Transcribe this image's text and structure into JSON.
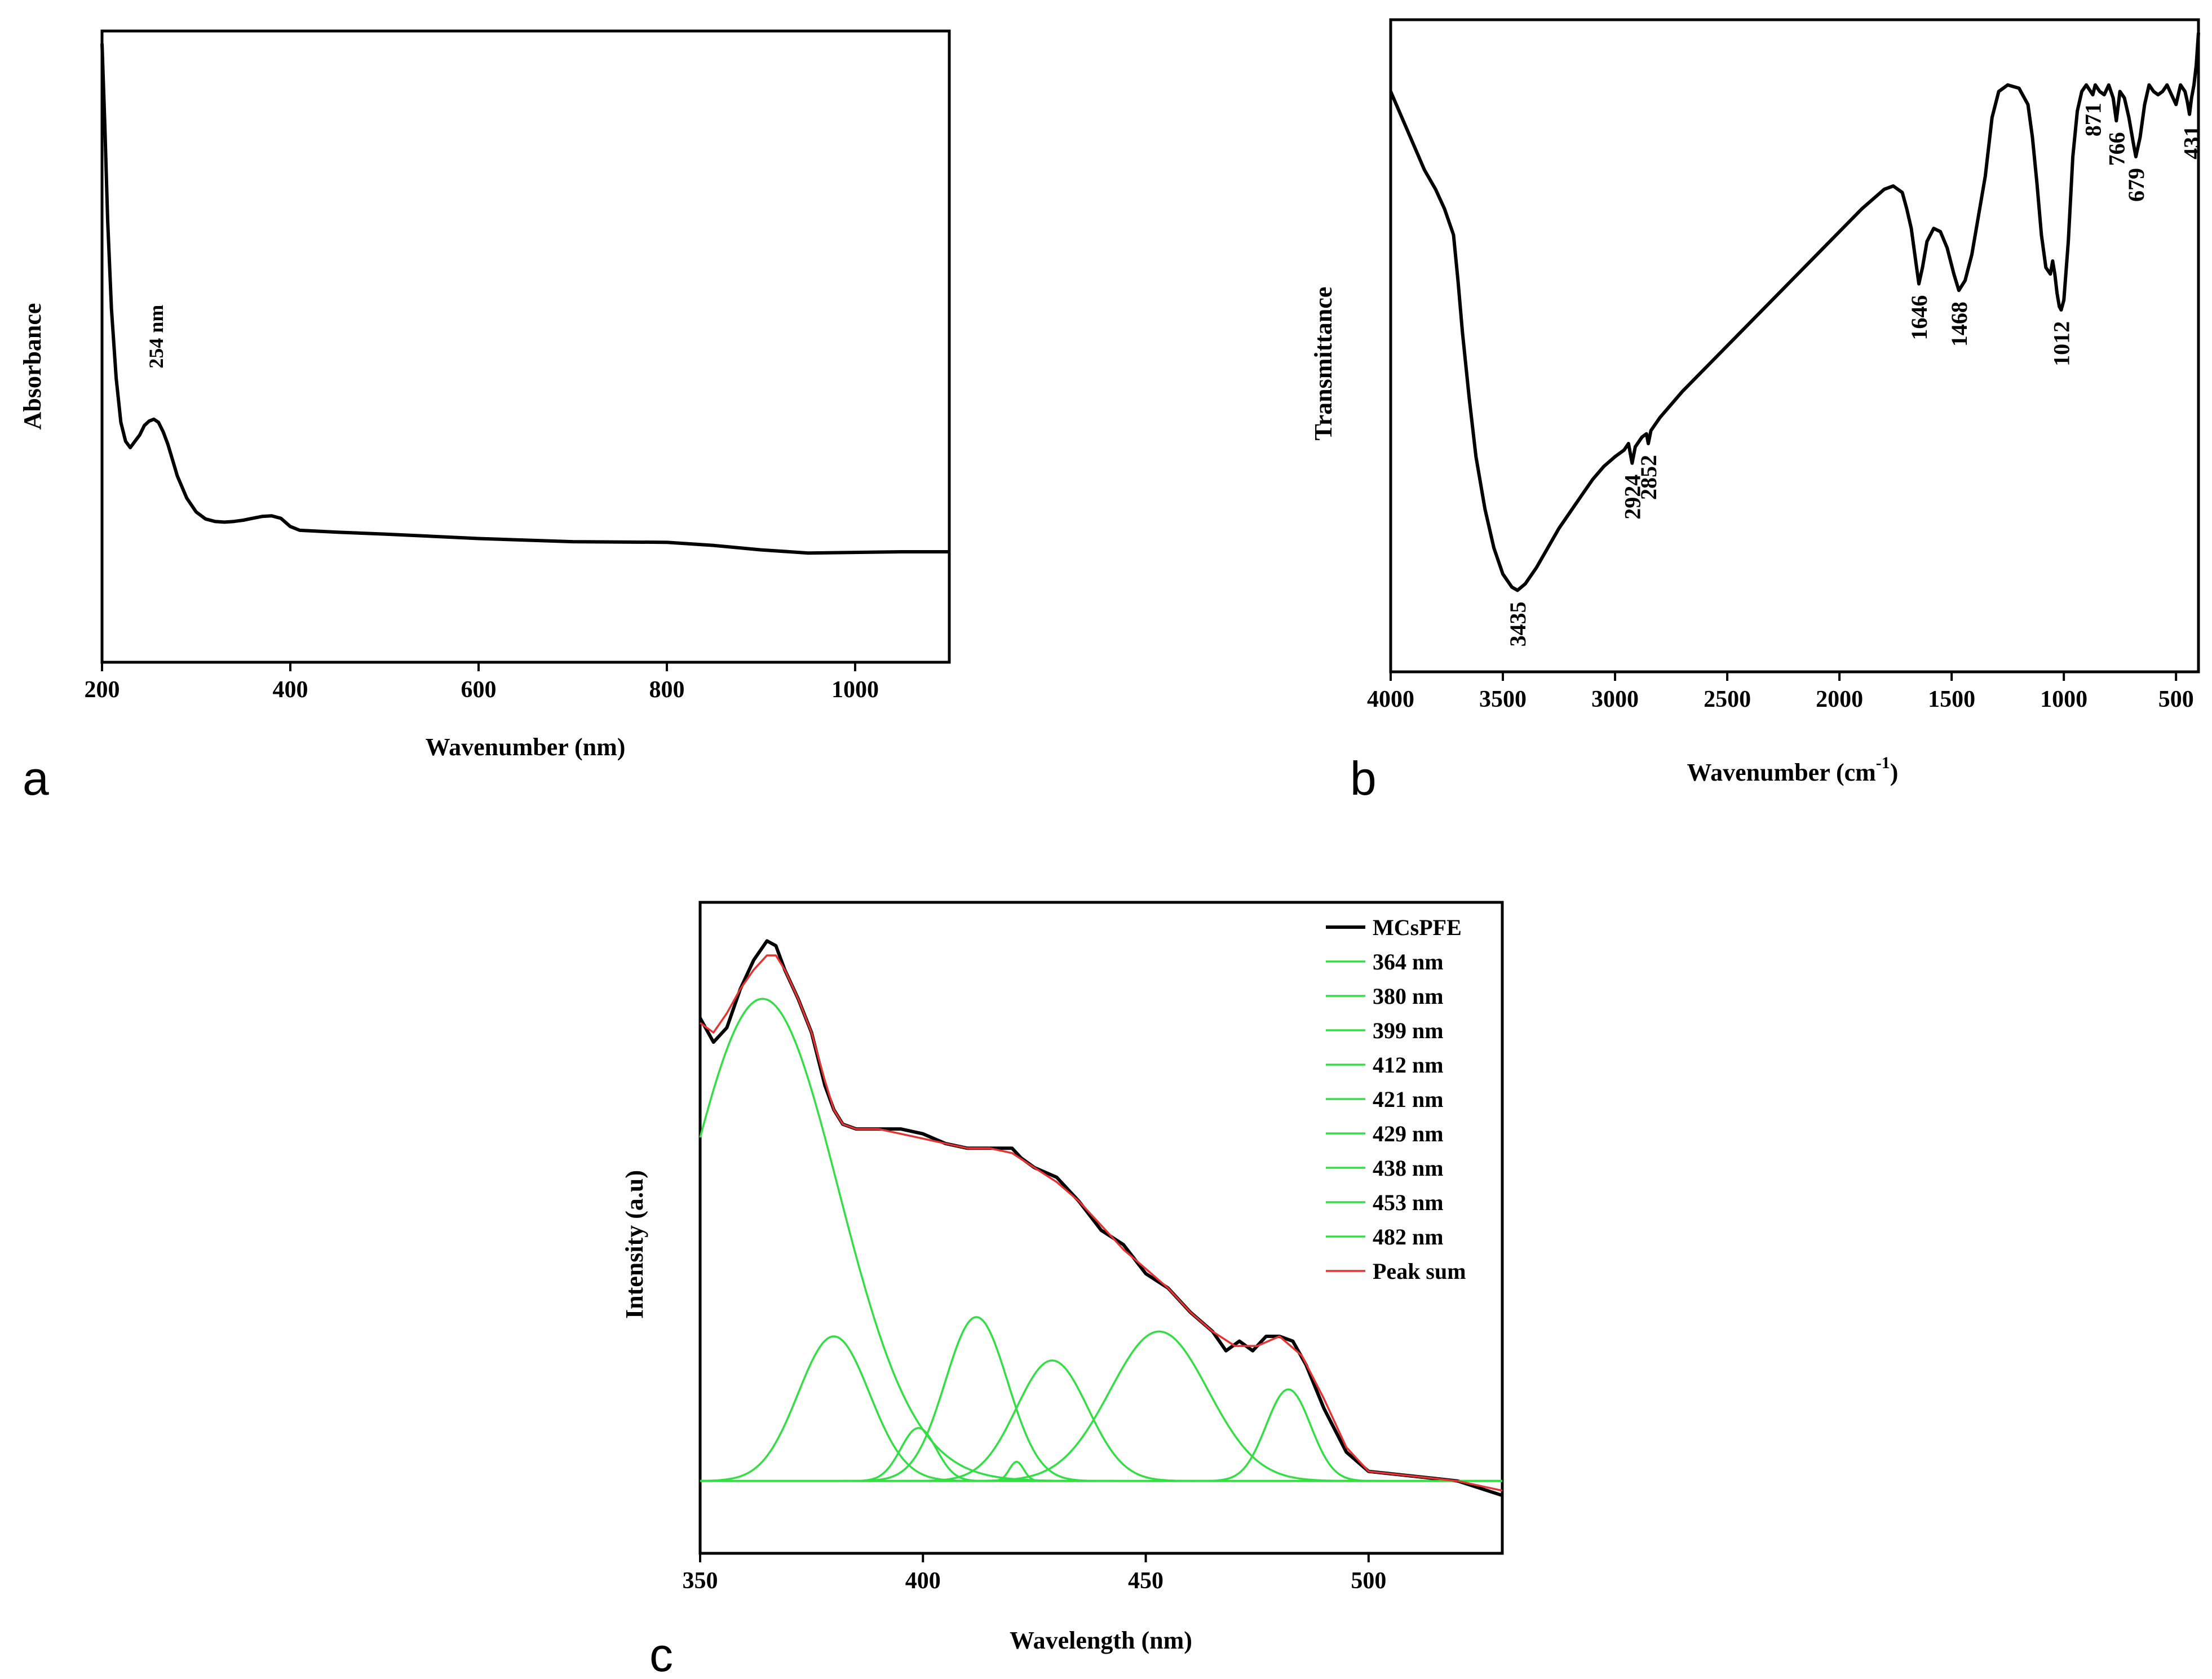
{
  "chart_data": [
    {
      "id": "a",
      "type": "line",
      "panel_label": "a",
      "xlabel": "Wavenumber (nm)",
      "ylabel": "Absorbance",
      "xlim": [
        200,
        1100
      ],
      "ylim": [
        0,
        100
      ],
      "xticks": [
        200,
        400,
        600,
        800,
        1000
      ],
      "series": [
        {
          "name": "Absorbance",
          "color": "#000000",
          "x": [
            200,
            203,
            206,
            210,
            215,
            220,
            225,
            230,
            235,
            240,
            245,
            250,
            255,
            260,
            265,
            270,
            275,
            280,
            290,
            300,
            310,
            320,
            330,
            340,
            350,
            360,
            370,
            380,
            390,
            400,
            410,
            450,
            500,
            600,
            700,
            800,
            850,
            900,
            950,
            1000,
            1050,
            1100
          ],
          "y": [
            98,
            85,
            70,
            56,
            45,
            38,
            35,
            34,
            35,
            36,
            37.5,
            38.2,
            38.5,
            38,
            36.5,
            34.5,
            32,
            29.5,
            26,
            23.8,
            22.7,
            22.3,
            22.2,
            22.3,
            22.5,
            22.8,
            23.1,
            23.2,
            22.8,
            21.5,
            20.9,
            20.6,
            20.3,
            19.6,
            19.1,
            19,
            18.5,
            17.8,
            17.3,
            17.4,
            17.5,
            17.5
          ]
        }
      ],
      "annotations": [
        {
          "x": 254,
          "y": 38.5,
          "text": "254 nm"
        }
      ]
    },
    {
      "id": "b",
      "type": "line",
      "panel_label": "b",
      "xlabel": "Wavenumber (cm",
      "xlabel_sup": "-1",
      "xlabel_close": ")",
      "ylabel": "Transmittance",
      "xlim": [
        4000,
        400
      ],
      "ylim": [
        0,
        100
      ],
      "xticks": [
        4000,
        3500,
        3000,
        2500,
        2000,
        1500,
        1000,
        500
      ],
      "series": [
        {
          "name": "Transmittance",
          "color": "#000000",
          "x": [
            4000,
            3950,
            3900,
            3850,
            3800,
            3760,
            3720,
            3700,
            3680,
            3650,
            3620,
            3580,
            3540,
            3500,
            3460,
            3435,
            3400,
            3350,
            3300,
            3250,
            3200,
            3150,
            3100,
            3050,
            3000,
            2960,
            2940,
            2924,
            2910,
            2880,
            2860,
            2852,
            2840,
            2800,
            2700,
            2500,
            2300,
            2100,
            1900,
            1800,
            1760,
            1720,
            1700,
            1680,
            1660,
            1646,
            1630,
            1610,
            1580,
            1550,
            1520,
            1490,
            1468,
            1440,
            1410,
            1380,
            1350,
            1320,
            1290,
            1250,
            1200,
            1160,
            1140,
            1120,
            1100,
            1080,
            1060,
            1050,
            1040,
            1030,
            1020,
            1012,
            1000,
            980,
            960,
            940,
            920,
            900,
            871,
            860,
            840,
            820,
            800,
            780,
            766,
            750,
            730,
            710,
            690,
            679,
            660,
            640,
            620,
            600,
            580,
            560,
            540,
            520,
            500,
            480,
            460,
            450,
            440,
            431,
            420,
            410,
            400
          ],
          "y": [
            89,
            85,
            81,
            77,
            74,
            71,
            67,
            60,
            52,
            42,
            33,
            25,
            19,
            15,
            13,
            12.5,
            13.5,
            16,
            19,
            22,
            24.5,
            27,
            29.5,
            31.5,
            33,
            34,
            35,
            32,
            34.5,
            36,
            36.5,
            35,
            37,
            39,
            43,
            50,
            57,
            64,
            71,
            74,
            74.5,
            73.5,
            71,
            68,
            63,
            59.5,
            62,
            66,
            68,
            67.5,
            65,
            61,
            58.5,
            60,
            64,
            70,
            76,
            85,
            89,
            90,
            89.5,
            87,
            82,
            75,
            67,
            62,
            61,
            63,
            61,
            58,
            56,
            55.5,
            57,
            66,
            79,
            86,
            89,
            90,
            88.5,
            90,
            89,
            88.5,
            90,
            88,
            84.5,
            89,
            88,
            85,
            81,
            79,
            82,
            87,
            90,
            89,
            88.5,
            89,
            90,
            88.5,
            87,
            90,
            89,
            87.5,
            85.5,
            88,
            90,
            93,
            98
          ]
        }
      ],
      "annotations": [
        {
          "x": 3435,
          "y": 12.5,
          "text": "3435"
        },
        {
          "x": 2924,
          "y": 32,
          "text": "2924"
        },
        {
          "x": 2852,
          "y": 35,
          "text": "2852"
        },
        {
          "x": 1646,
          "y": 59.5,
          "text": "1646"
        },
        {
          "x": 1468,
          "y": 58.5,
          "text": "1468"
        },
        {
          "x": 1012,
          "y": 55.5,
          "text": "1012"
        },
        {
          "x": 871,
          "y": 89,
          "text": "871"
        },
        {
          "x": 766,
          "y": 84.5,
          "text": "766"
        },
        {
          "x": 679,
          "y": 79,
          "text": "679"
        },
        {
          "x": 431,
          "y": 85.5,
          "text": "431"
        }
      ]
    },
    {
      "id": "c",
      "type": "line",
      "panel_label": "c",
      "xlabel": "Wavelength (nm)",
      "ylabel": "Intensity (a.u)",
      "xlim": [
        350,
        530
      ],
      "ylim": [
        -0.15,
        1.2
      ],
      "xticks": [
        350,
        400,
        450,
        500
      ],
      "baseline": 0,
      "series": [
        {
          "name": "MCsPFE",
          "color": "#000000",
          "x": [
            350,
            353,
            356,
            359,
            362,
            365,
            367,
            369,
            372,
            375,
            378,
            380,
            382,
            385,
            390,
            395,
            400,
            405,
            410,
            415,
            420,
            422,
            425,
            430,
            435,
            440,
            445,
            450,
            455,
            460,
            465,
            468,
            471,
            474,
            477,
            480,
            483,
            486,
            490,
            495,
            500,
            510,
            520,
            530
          ],
          "y": [
            0.96,
            0.91,
            0.94,
            1.02,
            1.08,
            1.12,
            1.11,
            1.06,
            1.0,
            0.93,
            0.82,
            0.77,
            0.74,
            0.73,
            0.73,
            0.73,
            0.72,
            0.7,
            0.69,
            0.69,
            0.69,
            0.67,
            0.65,
            0.63,
            0.58,
            0.52,
            0.49,
            0.43,
            0.4,
            0.35,
            0.31,
            0.27,
            0.29,
            0.27,
            0.3,
            0.3,
            0.29,
            0.24,
            0.15,
            0.06,
            0.02,
            0.01,
            0.0,
            -0.03
          ]
        },
        {
          "name": "364 nm",
          "color": "#33dd44",
          "center": 364,
          "amplitude": 1.0,
          "sigma": 17
        },
        {
          "name": "380 nm",
          "color": "#33dd44",
          "center": 380,
          "amplitude": 0.3,
          "sigma": 8
        },
        {
          "name": "399 nm",
          "color": "#33dd44",
          "center": 399,
          "amplitude": 0.11,
          "sigma": 4
        },
        {
          "name": "412 nm",
          "color": "#33dd44",
          "center": 412,
          "amplitude": 0.34,
          "sigma": 7
        },
        {
          "name": "421 nm",
          "color": "#33dd44",
          "center": 421,
          "amplitude": 0.04,
          "sigma": 1.6
        },
        {
          "name": "429 nm",
          "color": "#33dd44",
          "center": 429,
          "amplitude": 0.25,
          "sigma": 8
        },
        {
          "name": "438 nm",
          "color": "#33dd44",
          "center": 438,
          "amplitude": 0.0,
          "sigma": 5
        },
        {
          "name": "453 nm",
          "color": "#33dd44",
          "center": 453,
          "amplitude": 0.31,
          "sigma": 11
        },
        {
          "name": "482 nm",
          "color": "#33dd44",
          "center": 482,
          "amplitude": 0.19,
          "sigma": 5
        },
        {
          "name": "Peak sum",
          "color": "#e33333",
          "x": [
            350,
            353,
            356,
            359,
            362,
            365,
            367,
            369,
            372,
            375,
            378,
            380,
            382,
            385,
            390,
            395,
            400,
            405,
            410,
            415,
            420,
            425,
            430,
            435,
            440,
            445,
            450,
            455,
            460,
            465,
            470,
            475,
            480,
            485,
            490,
            495,
            500,
            510,
            520,
            530
          ],
          "y": [
            0.95,
            0.93,
            0.97,
            1.02,
            1.06,
            1.09,
            1.09,
            1.06,
            1.0,
            0.93,
            0.83,
            0.77,
            0.74,
            0.73,
            0.73,
            0.72,
            0.71,
            0.7,
            0.69,
            0.69,
            0.68,
            0.65,
            0.62,
            0.58,
            0.53,
            0.48,
            0.44,
            0.4,
            0.35,
            0.31,
            0.28,
            0.28,
            0.3,
            0.26,
            0.17,
            0.07,
            0.02,
            0.01,
            0.0,
            -0.02
          ]
        }
      ]
    }
  ]
}
